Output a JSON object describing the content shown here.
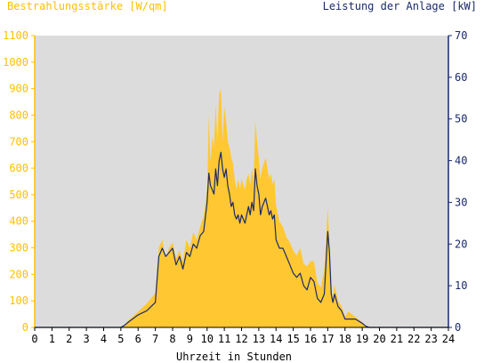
{
  "colors": {
    "irradiance": "#ffc832",
    "power": "#1a2a6a",
    "plot_background": "#dcdcdc",
    "left_axis": "#ffc000",
    "right_axis": "#1a2a6a"
  },
  "chart_data": {
    "type": "area",
    "y_left_label": "Bestrahlungsstärke [W/qm]",
    "y_right_label": "Leistung der Anlage [kW]",
    "xlabel": "Uhrzeit in Stunden",
    "xlim": [
      0,
      24
    ],
    "y_left_lim": [
      0,
      1100
    ],
    "y_right_lim": [
      0,
      70
    ],
    "x_ticks": [
      "0",
      "1",
      "2",
      "3",
      "4",
      "5",
      "6",
      "7",
      "8",
      "9",
      "10",
      "11",
      "12",
      "13",
      "14",
      "15",
      "16",
      "17",
      "18",
      "19",
      "20",
      "21",
      "22",
      "23",
      "24"
    ],
    "y_left_ticks": [
      "0",
      "100",
      "200",
      "300",
      "400",
      "500",
      "600",
      "700",
      "800",
      "900",
      "1000",
      "1100"
    ],
    "y_right_ticks": [
      "0",
      "10",
      "20",
      "30",
      "40",
      "50",
      "60",
      "70"
    ],
    "grid": false,
    "series": [
      {
        "name": "Bestrahlungsstärke [W/qm]",
        "axis": "left",
        "style": "filled-area",
        "x": [
          0,
          5,
          5.2,
          5.5,
          6,
          6.5,
          7,
          7.2,
          7.4,
          7.6,
          7.8,
          8,
          8.2,
          8.4,
          8.6,
          8.8,
          9,
          9.2,
          9.4,
          9.6,
          9.8,
          10,
          10.1,
          10.2,
          10.3,
          10.4,
          10.5,
          10.6,
          10.7,
          10.8,
          10.9,
          11,
          11.1,
          11.2,
          11.3,
          11.4,
          11.5,
          11.6,
          11.7,
          11.8,
          11.9,
          12,
          12.1,
          12.2,
          12.3,
          12.4,
          12.5,
          12.6,
          12.7,
          12.8,
          12.9,
          13,
          13.1,
          13.2,
          13.3,
          13.4,
          13.5,
          13.6,
          13.7,
          13.8,
          13.9,
          14,
          14.2,
          14.4,
          14.6,
          14.8,
          15,
          15.2,
          15.4,
          15.6,
          15.8,
          16,
          16.2,
          16.4,
          16.6,
          16.8,
          17,
          17.1,
          17.2,
          17.3,
          17.4,
          17.6,
          17.8,
          18,
          18.2,
          18.4,
          18.6,
          18.8,
          19,
          19.2,
          19.4,
          19.6,
          24
        ],
        "y": [
          0,
          0,
          10,
          30,
          60,
          90,
          130,
          300,
          330,
          260,
          300,
          320,
          260,
          290,
          250,
          330,
          300,
          360,
          330,
          380,
          420,
          520,
          800,
          620,
          720,
          680,
          840,
          700,
          880,
          900,
          700,
          830,
          780,
          700,
          680,
          640,
          620,
          560,
          520,
          560,
          520,
          560,
          540,
          520,
          560,
          580,
          540,
          600,
          560,
          780,
          700,
          640,
          560,
          600,
          620,
          640,
          600,
          560,
          580,
          540,
          560,
          460,
          400,
          380,
          340,
          320,
          290,
          270,
          300,
          240,
          230,
          250,
          250,
          170,
          150,
          220,
          450,
          320,
          150,
          110,
          160,
          100,
          80,
          40,
          60,
          50,
          40,
          30,
          20,
          5,
          0,
          0,
          0
        ]
      },
      {
        "name": "Leistung der Anlage [kW]",
        "axis": "right",
        "style": "line",
        "x": [
          0,
          5,
          5.2,
          5.5,
          6,
          6.5,
          7,
          7.2,
          7.4,
          7.6,
          7.8,
          8,
          8.2,
          8.4,
          8.6,
          8.8,
          9,
          9.2,
          9.4,
          9.6,
          9.8,
          10,
          10.1,
          10.2,
          10.3,
          10.4,
          10.5,
          10.6,
          10.7,
          10.8,
          10.9,
          11,
          11.1,
          11.2,
          11.3,
          11.4,
          11.5,
          11.6,
          11.7,
          11.8,
          11.9,
          12,
          12.1,
          12.2,
          12.3,
          12.4,
          12.5,
          12.6,
          12.7,
          12.8,
          12.9,
          13,
          13.1,
          13.2,
          13.3,
          13.4,
          13.5,
          13.6,
          13.7,
          13.8,
          13.9,
          14,
          14.2,
          14.4,
          14.6,
          14.8,
          15,
          15.2,
          15.4,
          15.6,
          15.8,
          16,
          16.2,
          16.4,
          16.6,
          16.8,
          17,
          17.1,
          17.2,
          17.3,
          17.4,
          17.6,
          17.8,
          18,
          18.2,
          18.4,
          18.6,
          18.8,
          19,
          19.2,
          19.4,
          19.6,
          24
        ],
        "y": [
          0,
          0,
          0.5,
          1.5,
          3,
          4,
          6,
          17,
          19,
          17,
          18,
          19,
          15,
          17,
          14,
          18,
          17,
          20,
          19,
          22,
          23,
          30,
          37,
          34,
          33,
          32,
          38,
          34,
          40,
          42,
          38,
          36,
          38,
          34,
          32,
          29,
          30,
          27,
          26,
          27,
          25,
          27,
          26,
          25,
          27,
          29,
          27,
          30,
          28,
          38,
          34,
          32,
          27,
          29,
          30,
          31,
          29,
          27,
          28,
          26,
          27,
          21,
          19,
          19,
          17,
          15,
          13,
          12,
          13,
          10,
          9,
          12,
          11,
          7,
          6,
          8,
          23,
          18,
          8,
          6,
          8,
          5,
          4,
          2,
          2,
          2,
          2,
          1.5,
          1,
          0.3,
          0,
          0,
          0
        ]
      }
    ]
  }
}
